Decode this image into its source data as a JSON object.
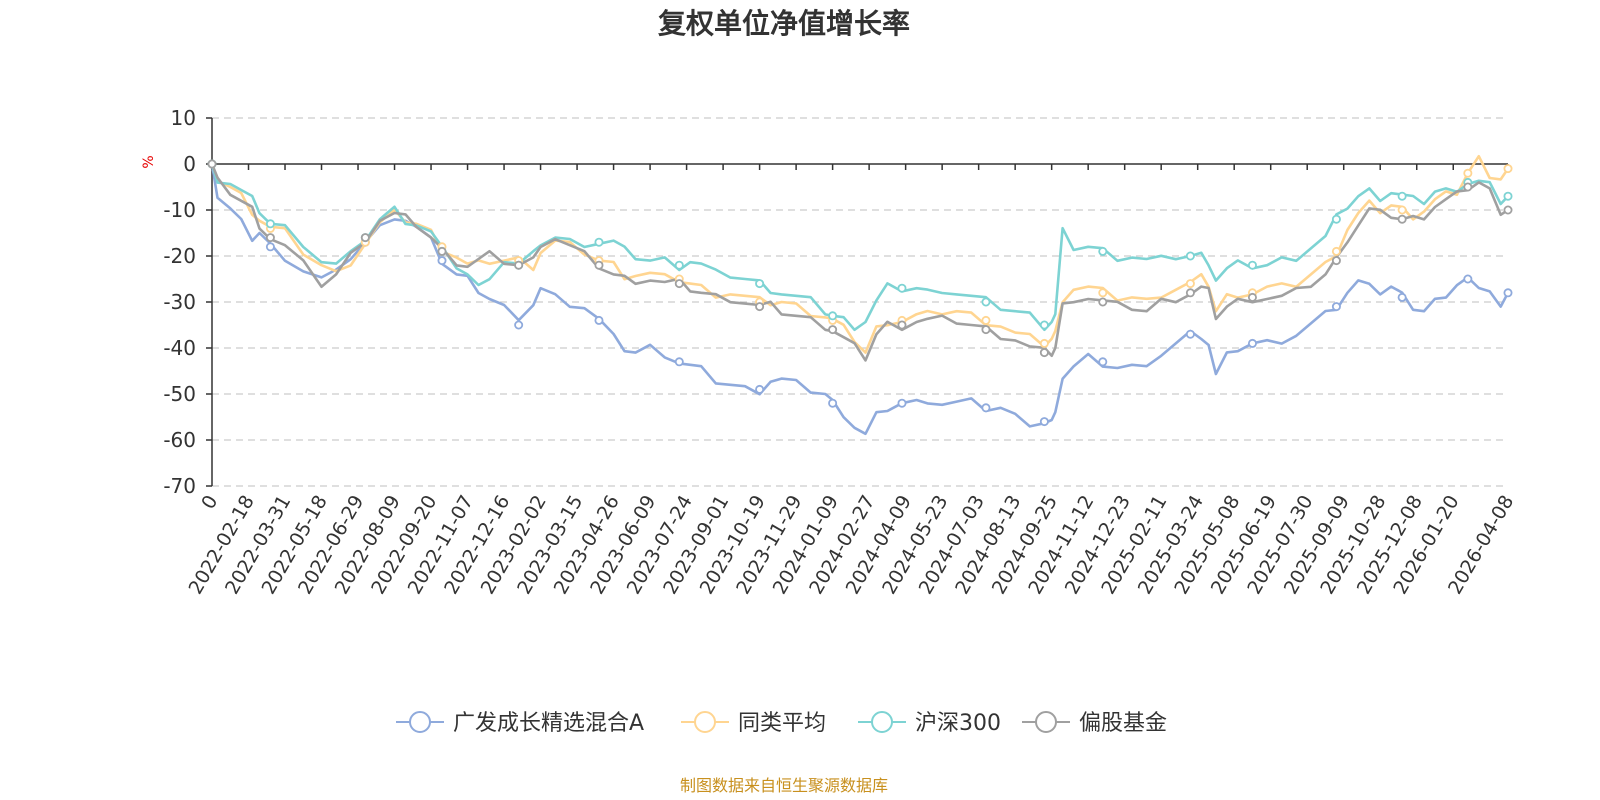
{
  "chart_data": {
    "type": "line",
    "title": "复权单位净值增长率",
    "ylabel": "%",
    "ylim": [
      -70,
      10
    ],
    "yticks": [
      10,
      0,
      -10,
      -20,
      -30,
      -40,
      -50,
      -60,
      -70
    ],
    "x_tick_labels": [
      "0",
      "2022-02-18",
      "2022-03-31",
      "2022-05-18",
      "2022-06-29",
      "2022-08-09",
      "2022-09-20",
      "2022-11-07",
      "2022-12-16",
      "2023-02-02",
      "2023-03-15",
      "2023-04-26",
      "2023-06-09",
      "2023-07-24",
      "2023-09-01",
      "2023-10-19",
      "2023-11-29",
      "2024-01-09",
      "2024-02-27",
      "2024-04-09",
      "2024-05-23",
      "2024-07-03",
      "2024-08-13",
      "2024-09-25",
      "2024-11-12",
      "2024-12-23",
      "2025-02-11",
      "2025-03-24",
      "2025-05-08",
      "2025-06-19",
      "2025-07-30",
      "2025-09-09",
      "2025-10-28",
      "2025-12-08",
      "2026-01-20",
      "2026-04-08"
    ],
    "x_positions": [
      0,
      1,
      2,
      3,
      4,
      5,
      6,
      7,
      8,
      9,
      10,
      11,
      12,
      13,
      14,
      15,
      16,
      17,
      18,
      19,
      20,
      21,
      22,
      23,
      24,
      25,
      26,
      27,
      28,
      29,
      30,
      31,
      32,
      33,
      34,
      35.5
    ],
    "x_range": [
      0,
      35.5
    ],
    "series": [
      {
        "name": "广发成长精选混合A",
        "color": "#8faadc",
        "x": [
          0,
          0.15,
          0.5,
          0.8,
          1.1,
          1.3,
          1.6,
          2.0,
          2.5,
          3.0,
          3.4,
          3.8,
          4.2,
          4.6,
          5.0,
          5.3,
          5.6,
          6.0,
          6.3,
          6.7,
          7.0,
          7.3,
          7.6,
          8.0,
          8.4,
          8.8,
          9.0,
          9.4,
          9.8,
          10.2,
          10.6,
          11.0,
          11.3,
          11.6,
          12.0,
          12.4,
          12.8,
          13.1,
          13.4,
          13.8,
          14.2,
          14.6,
          15.0,
          15.3,
          15.6,
          16.0,
          16.4,
          16.8,
          17.0,
          17.3,
          17.6,
          17.9,
          18.2,
          18.5,
          18.9,
          19.3,
          19.6,
          20.0,
          20.4,
          20.8,
          21.2,
          21.6,
          22.0,
          22.4,
          22.8,
          23.0,
          23.1,
          23.3,
          23.6,
          24.0,
          24.4,
          24.8,
          25.2,
          25.6,
          26.0,
          26.4,
          26.8,
          27.1,
          27.3,
          27.5,
          27.8,
          28.1,
          28.5,
          28.9,
          29.3,
          29.7,
          30.1,
          30.5,
          30.8,
          31.1,
          31.4,
          31.7,
          32.0,
          32.3,
          32.6,
          32.9,
          33.2,
          33.5,
          33.8,
          34.1,
          34.4,
          34.7,
          35.0,
          35.3,
          35.5
        ],
        "values": [
          0,
          -7,
          -10,
          -13,
          -16,
          -15,
          -18,
          -20,
          -23,
          -25,
          -24,
          -20,
          -17,
          -14,
          -11,
          -12,
          -14,
          -17,
          -21,
          -24,
          -25,
          -27,
          -29,
          -31,
          -35,
          -30,
          -27,
          -29,
          -30,
          -31,
          -34,
          -38,
          -40,
          -41,
          -40,
          -41,
          -43,
          -44,
          -45,
          -47,
          -48,
          -49,
          -49,
          -47,
          -47,
          -48,
          -49,
          -50,
          -52,
          -54,
          -57,
          -59,
          -55,
          -53,
          -52,
          -52,
          -51,
          -52,
          -52,
          -52,
          -53,
          -53,
          -55,
          -56,
          -56,
          -56,
          -55,
          -46,
          -44,
          -42,
          -43,
          -44,
          -44,
          -45,
          -41,
          -39,
          -37,
          -37,
          -39,
          -46,
          -42,
          -40,
          -39,
          -39,
          -38,
          -37,
          -35,
          -33,
          -31,
          -28,
          -26,
          -25,
          -28,
          -27,
          -29,
          -31,
          -32,
          -30,
          -28,
          -26,
          -25,
          -28,
          -27,
          -31,
          -28
        ]
      },
      {
        "name": "同类平均",
        "color": "#ffd591",
        "x": [
          0,
          0.15,
          0.5,
          0.8,
          1.1,
          1.3,
          1.6,
          2.0,
          2.5,
          3.0,
          3.4,
          3.8,
          4.2,
          4.6,
          5.0,
          5.3,
          5.6,
          6.0,
          6.3,
          6.7,
          7.0,
          7.3,
          7.6,
          8.0,
          8.4,
          8.8,
          9.0,
          9.4,
          9.8,
          10.2,
          10.6,
          11.0,
          11.3,
          11.6,
          12.0,
          12.4,
          12.8,
          13.1,
          13.4,
          13.8,
          14.2,
          14.6,
          15.0,
          15.3,
          15.6,
          16.0,
          16.4,
          16.8,
          17.0,
          17.3,
          17.6,
          17.9,
          18.2,
          18.5,
          18.9,
          19.3,
          19.6,
          20.0,
          20.4,
          20.8,
          21.2,
          21.6,
          22.0,
          22.4,
          22.8,
          23.0,
          23.1,
          23.3,
          23.6,
          24.0,
          24.4,
          24.8,
          25.2,
          25.6,
          26.0,
          26.4,
          26.8,
          27.1,
          27.3,
          27.5,
          27.8,
          28.1,
          28.5,
          28.9,
          29.3,
          29.7,
          30.1,
          30.5,
          30.8,
          31.1,
          31.4,
          31.7,
          32.0,
          32.3,
          32.6,
          32.9,
          33.2,
          33.5,
          33.8,
          34.1,
          34.4,
          34.7,
          35.0,
          35.3,
          35.5
        ],
        "values": [
          0,
          -3,
          -5,
          -7,
          -10,
          -12,
          -14,
          -15,
          -19,
          -22,
          -24,
          -21,
          -17,
          -13,
          -11,
          -12,
          -13,
          -15,
          -18,
          -20,
          -22,
          -22,
          -21,
          -21,
          -21,
          -22,
          -19,
          -17,
          -18,
          -19,
          -21,
          -22,
          -24,
          -24,
          -24,
          -25,
          -25,
          -26,
          -27,
          -28,
          -28,
          -29,
          -30,
          -30,
          -30,
          -31,
          -32,
          -33,
          -34,
          -36,
          -38,
          -41,
          -36,
          -34,
          -34,
          -33,
          -33,
          -32,
          -32,
          -33,
          -34,
          -35,
          -37,
          -38,
          -39,
          -38,
          -37,
          -29,
          -27,
          -27,
          -28,
          -29,
          -29,
          -30,
          -28,
          -27,
          -26,
          -25,
          -26,
          -32,
          -29,
          -28,
          -28,
          -27,
          -27,
          -26,
          -24,
          -22,
          -19,
          -14,
          -11,
          -9,
          -10,
          -9,
          -10,
          -11,
          -10,
          -8,
          -7,
          -6,
          -2,
          1,
          -2,
          -3,
          -1
        ]
      },
      {
        "name": "沪深300",
        "color": "#7dd3d3",
        "x": [
          0,
          0.15,
          0.5,
          0.8,
          1.1,
          1.3,
          1.6,
          2.0,
          2.5,
          3.0,
          3.4,
          3.8,
          4.2,
          4.6,
          5.0,
          5.3,
          5.6,
          6.0,
          6.3,
          6.7,
          7.0,
          7.3,
          7.6,
          8.0,
          8.4,
          8.8,
          9.0,
          9.4,
          9.8,
          10.2,
          10.6,
          11.0,
          11.3,
          11.6,
          12.0,
          12.4,
          12.8,
          13.1,
          13.4,
          13.8,
          14.2,
          14.6,
          15.0,
          15.3,
          15.6,
          16.0,
          16.4,
          16.8,
          17.0,
          17.3,
          17.6,
          17.9,
          18.2,
          18.5,
          18.9,
          19.3,
          19.6,
          20.0,
          20.4,
          20.8,
          21.2,
          21.6,
          22.0,
          22.4,
          22.8,
          23.0,
          23.1,
          23.3,
          23.6,
          24.0,
          24.4,
          24.8,
          25.2,
          25.6,
          26.0,
          26.4,
          26.8,
          27.1,
          27.3,
          27.5,
          27.8,
          28.1,
          28.5,
          28.9,
          29.3,
          29.7,
          30.1,
          30.5,
          30.8,
          31.1,
          31.4,
          31.7,
          32.0,
          32.3,
          32.6,
          32.9,
          33.2,
          33.5,
          33.8,
          34.1,
          34.4,
          34.7,
          35.0,
          35.3,
          35.5
        ],
        "values": [
          0,
          -3,
          -4,
          -6,
          -8,
          -10,
          -13,
          -14,
          -17,
          -21,
          -22,
          -20,
          -16,
          -12,
          -10,
          -12,
          -13,
          -15,
          -19,
          -22,
          -24,
          -27,
          -24,
          -21,
          -22,
          -20,
          -17,
          -16,
          -17,
          -17,
          -17,
          -17,
          -19,
          -20,
          -21,
          -21,
          -22,
          -21,
          -22,
          -24,
          -24,
          -25,
          -26,
          -27,
          -28,
          -29,
          -30,
          -32,
          -33,
          -34,
          -35,
          -34,
          -30,
          -27,
          -27,
          -27,
          -28,
          -27,
          -28,
          -29,
          -30,
          -31,
          -32,
          -33,
          -35,
          -34,
          -33,
          -15,
          -18,
          -18,
          -19,
          -20,
          -20,
          -21,
          -21,
          -20,
          -20,
          -20,
          -21,
          -25,
          -23,
          -22,
          -22,
          -22,
          -21,
          -20,
          -18,
          -16,
          -12,
          -9,
          -7,
          -6,
          -7,
          -6,
          -7,
          -8,
          -8,
          -6,
          -6,
          -5,
          -4,
          -4,
          -5,
          -8,
          -7
        ]
      },
      {
        "name": "偏股基金",
        "color": "#a0a0a0",
        "x": [
          0,
          0.15,
          0.5,
          0.8,
          1.1,
          1.3,
          1.6,
          2.0,
          2.5,
          3.0,
          3.4,
          3.8,
          4.2,
          4.6,
          5.0,
          5.3,
          5.6,
          6.0,
          6.3,
          6.7,
          7.0,
          7.3,
          7.6,
          8.0,
          8.4,
          8.8,
          9.0,
          9.4,
          9.8,
          10.2,
          10.6,
          11.0,
          11.3,
          11.6,
          12.0,
          12.4,
          12.8,
          13.1,
          13.4,
          13.8,
          14.2,
          14.6,
          15.0,
          15.3,
          15.6,
          16.0,
          16.4,
          16.8,
          17.0,
          17.3,
          17.6,
          17.9,
          18.2,
          18.5,
          18.9,
          19.3,
          19.6,
          20.0,
          20.4,
          20.8,
          21.2,
          21.6,
          22.0,
          22.4,
          22.8,
          23.0,
          23.1,
          23.3,
          23.6,
          24.0,
          24.4,
          24.8,
          25.2,
          25.6,
          26.0,
          26.4,
          26.8,
          27.1,
          27.3,
          27.5,
          27.8,
          28.1,
          28.5,
          28.9,
          29.3,
          29.7,
          30.1,
          30.5,
          30.8,
          31.1,
          31.4,
          31.7,
          32.0,
          32.3,
          32.6,
          32.9,
          33.2,
          33.5,
          33.8,
          34.1,
          34.4,
          34.7,
          35.0,
          35.3,
          35.5
        ],
        "values": [
          0,
          -4,
          -6,
          -8,
          -10,
          -13,
          -16,
          -18,
          -22,
          -26,
          -24,
          -20,
          -16,
          -12,
          -11,
          -12,
          -13,
          -16,
          -19,
          -21,
          -22,
          -21,
          -20,
          -21,
          -22,
          -21,
          -17,
          -16,
          -18,
          -20,
          -22,
          -24,
          -25,
          -25,
          -25,
          -26,
          -26,
          -27,
          -28,
          -29,
          -29,
          -30,
          -31,
          -31,
          -32,
          -33,
          -34,
          -35,
          -36,
          -38,
          -40,
          -42,
          -37,
          -35,
          -35,
          -34,
          -34,
          -34,
          -34,
          -35,
          -36,
          -37,
          -38,
          -40,
          -41,
          -41,
          -40,
          -31,
          -29,
          -29,
          -30,
          -31,
          -31,
          -32,
          -30,
          -29,
          -28,
          -27,
          -28,
          -33,
          -31,
          -30,
          -29,
          -29,
          -29,
          -28,
          -26,
          -24,
          -21,
          -16,
          -13,
          -10,
          -11,
          -11,
          -12,
          -12,
          -11,
          -9,
          -8,
          -7,
          -5,
          -4,
          -6,
          -10,
          -10
        ]
      }
    ],
    "source_note": "制图数据来自恒生聚源数据库"
  }
}
